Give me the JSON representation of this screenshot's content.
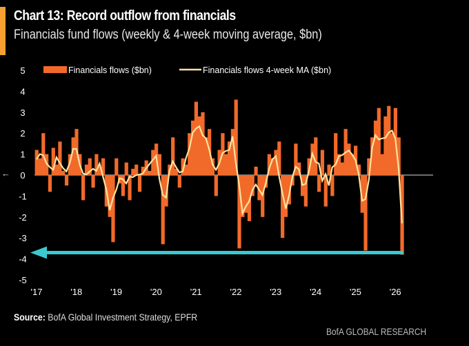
{
  "header": {
    "title": "Chart 13: Record outflow from financials",
    "subtitle": "Financials fund flows (weekly & 4-week moving average, $bn)",
    "back_glyph": "←"
  },
  "footer": {
    "source_label": "Source:",
    "source_text": " BofA Global Investment Strategy, EPFR",
    "brand": "BofA GLOBAL RESEARCH"
  },
  "colors": {
    "flows": "#f26a2a",
    "ma": "#fde3a0",
    "arrow": "#3cc8d0",
    "accent": "#f5a030"
  },
  "chart_data": {
    "type": "bar",
    "title": "Chart 13: Record outflow from financials",
    "ylabel": "$bn",
    "ylim": [
      -5,
      5
    ],
    "yticks": [
      "5",
      "4",
      "3",
      "2",
      "1",
      "0",
      "-1",
      "-2",
      "-3",
      "-4",
      "-5"
    ],
    "xticks": [
      "'17",
      "'18",
      "'19",
      "'20",
      "'21",
      "'22",
      "'23",
      "'24",
      "'25",
      "'26"
    ],
    "x_start_year": 2017,
    "period": "monthly approximation of weekly data",
    "legend": [
      "Financials flows ($bn)",
      "Financials flows 4-week MA ($bn)"
    ],
    "legend_position": "top",
    "ma_window": 4,
    "annotation": "arrow marking record outflow of about -3.8",
    "series": [
      {
        "name": "Financials flows ($bn)",
        "values": [
          1.2,
          0.8,
          2.0,
          1.0,
          -0.8,
          1.3,
          0.5,
          1.6,
          0.2,
          -0.5,
          1.0,
          1.8,
          2.2,
          1.0,
          -1.2,
          0.5,
          0.8,
          -0.6,
          1.0,
          0.4,
          0.8,
          -1.5,
          -2.0,
          -3.2,
          0.8,
          -0.4,
          -1.0,
          0.6,
          -1.2,
          0.3,
          0.5,
          -0.8,
          0.4,
          0.7,
          0.2,
          1.2,
          1.5,
          1.0,
          -3.3,
          -1.5,
          0.5,
          1.8,
          0.3,
          -0.6,
          0.8,
          0.5,
          2.0,
          2.6,
          3.5,
          2.8,
          3.0,
          1.8,
          2.2,
          0.8,
          -1.0,
          1.2,
          2.0,
          1.0,
          1.6,
          2.2,
          3.6,
          -3.5,
          -2.0,
          -1.8,
          -2.2,
          -1.0,
          0.4,
          -1.2,
          -2.0,
          -0.6,
          1.0,
          0.8,
          1.2,
          1.6,
          -3.0,
          -2.0,
          -1.4,
          -0.5,
          1.5,
          0.6,
          -1.0,
          -1.5,
          0.8,
          1.5,
          1.8,
          -0.8,
          1.2,
          -1.5,
          0.5,
          -1.0,
          2.0,
          1.0,
          0.6,
          2.2,
          1.5,
          1.0,
          1.4,
          0.5,
          -1.8,
          -3.6,
          0.8,
          1.8,
          2.6,
          3.2,
          1.0,
          2.8,
          3.3,
          2.0,
          3.2,
          1.8,
          -3.8
        ]
      }
    ]
  }
}
